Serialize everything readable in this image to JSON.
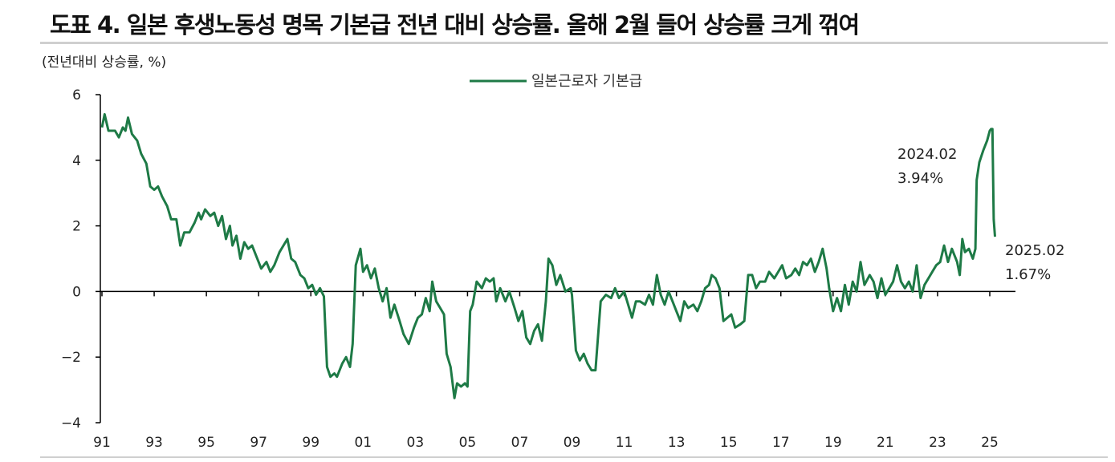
{
  "title": "도표 4. 일본 후생노동성 명목 기본급 전년 대비 상승률. 올해 2월 들어 상승률 크게 꺾여",
  "colors": {
    "line": "#1e7a46",
    "axis": "#000000",
    "rule": "#cfcfcf"
  },
  "chart_data": {
    "type": "line",
    "unit_label": "(전년대비 상승률, %)",
    "xlabel": "",
    "ylabel": "",
    "xlim": [
      1991.0,
      2025.1
    ],
    "ylim": [
      -4,
      6
    ],
    "yticks": [
      6,
      4,
      2,
      0,
      -2,
      -4
    ],
    "ytick_labels": [
      "6",
      "4",
      "2",
      "0",
      "−2",
      "−4"
    ],
    "xticks": [
      1991,
      1993,
      1995,
      1997,
      1999,
      2001,
      2003,
      2005,
      2007,
      2009,
      2011,
      2013,
      2015,
      2017,
      2019,
      2021,
      2023,
      2025
    ],
    "xtick_labels": [
      "91",
      "93",
      "95",
      "97",
      "99",
      "01",
      "03",
      "05",
      "07",
      "09",
      "11",
      "13",
      "15",
      "17",
      "19",
      "21",
      "23",
      "25"
    ],
    "legend_position": "top-center",
    "grid": false,
    "series": [
      {
        "name": "일본근로자 기본급",
        "points": [
          [
            1991.0,
            5.0
          ],
          [
            1991.1,
            5.4
          ],
          [
            1991.25,
            4.9
          ],
          [
            1991.5,
            4.9
          ],
          [
            1991.65,
            4.7
          ],
          [
            1991.8,
            5.0
          ],
          [
            1991.9,
            4.9
          ],
          [
            1992.0,
            5.3
          ],
          [
            1992.15,
            4.8
          ],
          [
            1992.35,
            4.6
          ],
          [
            1992.5,
            4.2
          ],
          [
            1992.7,
            3.9
          ],
          [
            1992.85,
            3.2
          ],
          [
            1993.0,
            3.1
          ],
          [
            1993.15,
            3.2
          ],
          [
            1993.3,
            2.9
          ],
          [
            1993.5,
            2.6
          ],
          [
            1993.65,
            2.2
          ],
          [
            1993.85,
            2.2
          ],
          [
            1994.0,
            1.4
          ],
          [
            1994.15,
            1.8
          ],
          [
            1994.35,
            1.8
          ],
          [
            1994.55,
            2.1
          ],
          [
            1994.7,
            2.4
          ],
          [
            1994.8,
            2.2
          ],
          [
            1994.95,
            2.5
          ],
          [
            1995.15,
            2.3
          ],
          [
            1995.3,
            2.4
          ],
          [
            1995.45,
            2.0
          ],
          [
            1995.6,
            2.3
          ],
          [
            1995.75,
            1.6
          ],
          [
            1995.9,
            2.0
          ],
          [
            1996.0,
            1.4
          ],
          [
            1996.15,
            1.7
          ],
          [
            1996.3,
            1.0
          ],
          [
            1996.45,
            1.5
          ],
          [
            1996.6,
            1.3
          ],
          [
            1996.75,
            1.4
          ],
          [
            1996.9,
            1.1
          ],
          [
            1997.1,
            0.7
          ],
          [
            1997.3,
            0.9
          ],
          [
            1997.45,
            0.6
          ],
          [
            1997.6,
            0.8
          ],
          [
            1997.8,
            1.2
          ],
          [
            1997.95,
            1.4
          ],
          [
            1998.1,
            1.6
          ],
          [
            1998.25,
            1.0
          ],
          [
            1998.4,
            0.9
          ],
          [
            1998.6,
            0.5
          ],
          [
            1998.75,
            0.4
          ],
          [
            1998.9,
            0.1
          ],
          [
            1999.05,
            0.2
          ],
          [
            1999.2,
            -0.1
          ],
          [
            1999.35,
            0.1
          ],
          [
            1999.5,
            -0.15
          ],
          [
            1999.62,
            -2.3
          ],
          [
            1999.75,
            -2.6
          ],
          [
            1999.9,
            -2.5
          ],
          [
            2000.0,
            -2.6
          ],
          [
            2000.2,
            -2.2
          ],
          [
            2000.35,
            -2.0
          ],
          [
            2000.5,
            -2.3
          ],
          [
            2000.6,
            -1.6
          ],
          [
            2000.72,
            0.8
          ],
          [
            2000.9,
            1.3
          ],
          [
            2001.0,
            0.6
          ],
          [
            2001.15,
            0.8
          ],
          [
            2001.3,
            0.4
          ],
          [
            2001.45,
            0.7
          ],
          [
            2001.6,
            0.1
          ],
          [
            2001.75,
            -0.3
          ],
          [
            2001.9,
            0.1
          ],
          [
            2002.05,
            -0.8
          ],
          [
            2002.2,
            -0.4
          ],
          [
            2002.4,
            -0.9
          ],
          [
            2002.55,
            -1.3
          ],
          [
            2002.75,
            -1.6
          ],
          [
            2002.95,
            -1.1
          ],
          [
            2003.1,
            -0.8
          ],
          [
            2003.25,
            -0.7
          ],
          [
            2003.4,
            -0.2
          ],
          [
            2003.55,
            -0.6
          ],
          [
            2003.65,
            0.3
          ],
          [
            2003.8,
            -0.3
          ],
          [
            2003.95,
            -0.5
          ],
          [
            2004.1,
            -0.7
          ],
          [
            2004.2,
            -1.9
          ],
          [
            2004.35,
            -2.3
          ],
          [
            2004.5,
            -3.25
          ],
          [
            2004.6,
            -2.8
          ],
          [
            2004.75,
            -2.9
          ],
          [
            2004.9,
            -2.8
          ],
          [
            2005.0,
            -2.9
          ],
          [
            2005.1,
            -0.6
          ],
          [
            2005.2,
            -0.4
          ],
          [
            2005.35,
            0.3
          ],
          [
            2005.55,
            0.1
          ],
          [
            2005.7,
            0.4
          ],
          [
            2005.85,
            0.3
          ],
          [
            2006.0,
            0.4
          ],
          [
            2006.1,
            -0.3
          ],
          [
            2006.25,
            0.1
          ],
          [
            2006.45,
            -0.3
          ],
          [
            2006.6,
            0.0
          ],
          [
            2006.8,
            -0.5
          ],
          [
            2006.95,
            -0.9
          ],
          [
            2007.1,
            -0.6
          ],
          [
            2007.25,
            -1.4
          ],
          [
            2007.4,
            -1.6
          ],
          [
            2007.55,
            -1.2
          ],
          [
            2007.7,
            -1.0
          ],
          [
            2007.85,
            -1.5
          ],
          [
            2008.0,
            -0.3
          ],
          [
            2008.1,
            1.0
          ],
          [
            2008.25,
            0.8
          ],
          [
            2008.4,
            0.2
          ],
          [
            2008.55,
            0.5
          ],
          [
            2008.75,
            0.0
          ],
          [
            2008.95,
            0.1
          ],
          [
            2009.0,
            -0.1
          ],
          [
            2009.15,
            -1.8
          ],
          [
            2009.3,
            -2.1
          ],
          [
            2009.45,
            -1.9
          ],
          [
            2009.6,
            -2.2
          ],
          [
            2009.75,
            -2.4
          ],
          [
            2009.9,
            -2.4
          ],
          [
            2010.1,
            -0.3
          ],
          [
            2010.3,
            -0.1
          ],
          [
            2010.5,
            -0.2
          ],
          [
            2010.65,
            0.1
          ],
          [
            2010.8,
            -0.2
          ],
          [
            2011.0,
            0.0
          ],
          [
            2011.15,
            -0.4
          ],
          [
            2011.3,
            -0.8
          ],
          [
            2011.45,
            -0.3
          ],
          [
            2011.6,
            -0.3
          ],
          [
            2011.8,
            -0.4
          ],
          [
            2011.95,
            -0.1
          ],
          [
            2012.1,
            -0.4
          ],
          [
            2012.25,
            0.5
          ],
          [
            2012.4,
            -0.1
          ],
          [
            2012.55,
            -0.4
          ],
          [
            2012.7,
            0.0
          ],
          [
            2012.85,
            -0.3
          ],
          [
            2013.0,
            -0.6
          ],
          [
            2013.15,
            -0.9
          ],
          [
            2013.3,
            -0.3
          ],
          [
            2013.45,
            -0.5
          ],
          [
            2013.65,
            -0.4
          ],
          [
            2013.8,
            -0.6
          ],
          [
            2013.95,
            -0.3
          ],
          [
            2014.1,
            0.1
          ],
          [
            2014.25,
            0.2
          ],
          [
            2014.35,
            0.5
          ],
          [
            2014.5,
            0.4
          ],
          [
            2014.65,
            0.1
          ],
          [
            2014.8,
            -0.9
          ],
          [
            2014.95,
            -0.8
          ],
          [
            2015.1,
            -0.7
          ],
          [
            2015.25,
            -1.1
          ],
          [
            2015.45,
            -1.0
          ],
          [
            2015.6,
            -0.9
          ],
          [
            2015.75,
            0.5
          ],
          [
            2015.9,
            0.5
          ],
          [
            2016.05,
            0.1
          ],
          [
            2016.2,
            0.3
          ],
          [
            2016.4,
            0.3
          ],
          [
            2016.55,
            0.6
          ],
          [
            2016.75,
            0.4
          ],
          [
            2016.9,
            0.6
          ],
          [
            2017.05,
            0.8
          ],
          [
            2017.2,
            0.4
          ],
          [
            2017.4,
            0.5
          ],
          [
            2017.55,
            0.7
          ],
          [
            2017.7,
            0.5
          ],
          [
            2017.85,
            0.9
          ],
          [
            2018.0,
            0.8
          ],
          [
            2018.15,
            1.0
          ],
          [
            2018.3,
            0.6
          ],
          [
            2018.45,
            0.9
          ],
          [
            2018.6,
            1.3
          ],
          [
            2018.75,
            0.7
          ],
          [
            2018.85,
            0.1
          ],
          [
            2019.0,
            -0.6
          ],
          [
            2019.15,
            -0.2
          ],
          [
            2019.3,
            -0.6
          ],
          [
            2019.45,
            0.2
          ],
          [
            2019.6,
            -0.4
          ],
          [
            2019.75,
            0.3
          ],
          [
            2019.9,
            0.0
          ],
          [
            2020.05,
            0.9
          ],
          [
            2020.2,
            0.2
          ],
          [
            2020.4,
            0.5
          ],
          [
            2020.55,
            0.3
          ],
          [
            2020.7,
            -0.2
          ],
          [
            2020.85,
            0.4
          ],
          [
            2021.0,
            -0.1
          ],
          [
            2021.15,
            0.1
          ],
          [
            2021.3,
            0.3
          ],
          [
            2021.45,
            0.8
          ],
          [
            2021.6,
            0.3
          ],
          [
            2021.75,
            0.1
          ],
          [
            2021.9,
            0.3
          ],
          [
            2022.05,
            0.0
          ],
          [
            2022.2,
            0.8
          ],
          [
            2022.35,
            -0.2
          ],
          [
            2022.5,
            0.2
          ],
          [
            2022.65,
            0.4
          ],
          [
            2022.8,
            0.6
          ],
          [
            2022.95,
            0.8
          ],
          [
            2023.1,
            0.9
          ],
          [
            2023.25,
            1.4
          ],
          [
            2023.4,
            0.9
          ],
          [
            2023.55,
            1.3
          ],
          [
            2023.75,
            0.9
          ],
          [
            2023.85,
            0.5
          ],
          [
            2023.95,
            1.6
          ],
          [
            2024.05,
            1.2
          ],
          [
            2024.2,
            1.3
          ],
          [
            2024.35,
            1.0
          ],
          [
            2024.45,
            1.3
          ],
          [
            2024.5,
            3.4
          ],
          [
            2024.6,
            3.94
          ],
          [
            2024.75,
            4.3
          ],
          [
            2024.9,
            4.6
          ],
          [
            2025.0,
            4.9
          ],
          [
            2025.05,
            4.95
          ],
          [
            2025.1,
            4.95
          ],
          [
            2025.15,
            2.2
          ],
          [
            2025.2,
            1.67
          ]
        ]
      }
    ],
    "annotations": [
      {
        "date": "2024.02",
        "value_label": "3.94%"
      },
      {
        "date": "2025.02",
        "value_label": "1.67%"
      }
    ]
  }
}
